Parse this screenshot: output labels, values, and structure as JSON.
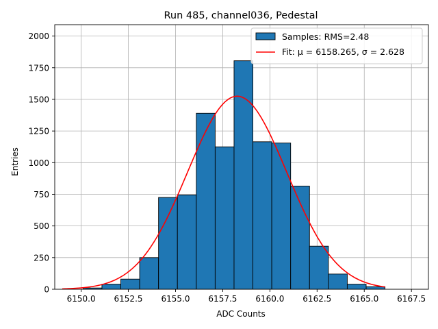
{
  "chart_data": {
    "type": "bar",
    "title": "Run 485, channel036, Pedestal",
    "xlabel": "ADC Counts",
    "ylabel": "Entries",
    "xlim": [
      6148.6,
      6168.4
    ],
    "ylim": [
      0,
      2090
    ],
    "grid": true,
    "legend_position": "top-right",
    "x_ticks": [
      6150.0,
      6152.5,
      6155.0,
      6157.5,
      6160.0,
      6162.5,
      6165.0,
      6167.5
    ],
    "x_tick_labels": [
      "6150.0",
      "6152.5",
      "6155.0",
      "6157.5",
      "6160.0",
      "6162.5",
      "6165.0",
      "6167.5"
    ],
    "y_ticks": [
      0,
      250,
      500,
      750,
      1000,
      1250,
      1500,
      1750,
      2000
    ],
    "y_tick_labels": [
      "0",
      "250",
      "500",
      "750",
      "1000",
      "1250",
      "1500",
      "1750",
      "2000"
    ],
    "bars": {
      "name": "Samples: RMS=2.48",
      "color": "#1f77b4",
      "edge_color": "#000000",
      "bin_edges": [
        6150.1,
        6151.1,
        6152.1,
        6153.1,
        6154.1,
        6155.1,
        6156.1,
        6157.1,
        6158.1,
        6159.1,
        6160.1,
        6161.1,
        6162.1,
        6163.1,
        6164.1,
        6165.1,
        6166.1
      ],
      "values": [
        10,
        40,
        80,
        250,
        725,
        745,
        1390,
        1125,
        1805,
        1165,
        1155,
        815,
        340,
        120,
        40,
        20
      ]
    },
    "fit": {
      "name": "Fit: μ = 6158.265, σ = 2.628",
      "color": "#ff0000",
      "mu": 6158.265,
      "sigma": 2.628,
      "amplitude": 1525,
      "x_range": [
        6149.0,
        6166.1
      ]
    }
  }
}
